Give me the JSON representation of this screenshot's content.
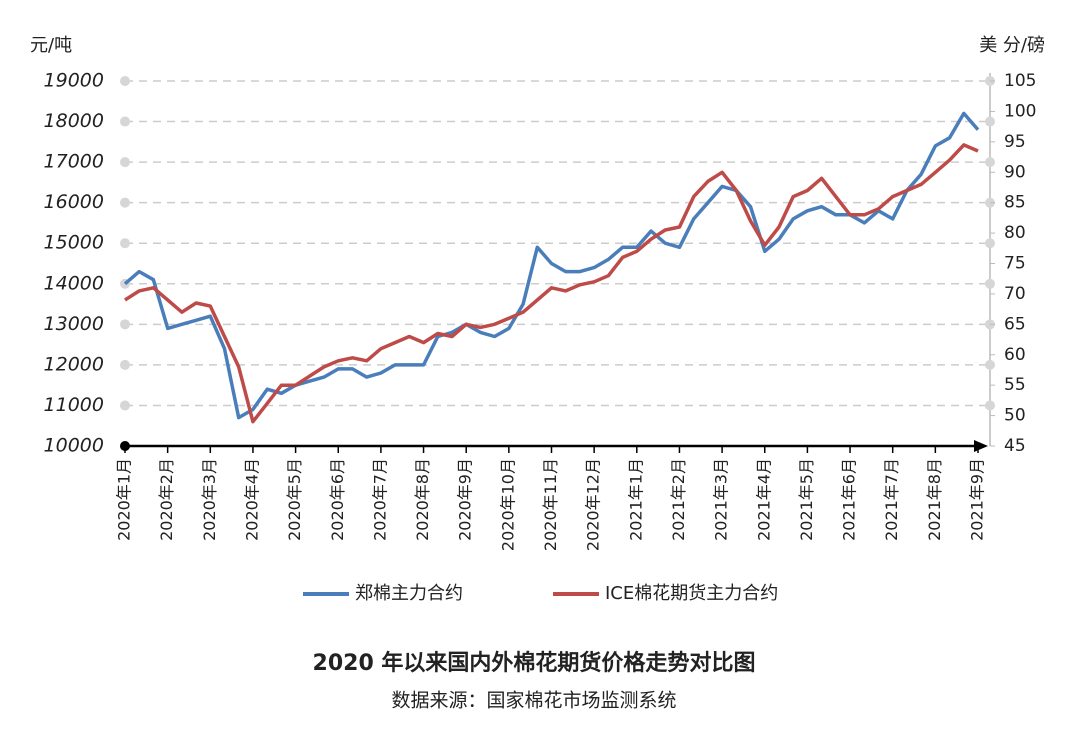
{
  "chart_data": {
    "type": "line",
    "title": "2020 年以来国内外棉花期货价格走势对比图",
    "subtitle": "数据来源：国家棉花市场监测系统",
    "ylabel": "元/吨",
    "y2label": "美 分/磅",
    "categories": [
      "2020年1月",
      null,
      null,
      "2020年2月",
      null,
      null,
      "2020年3月",
      null,
      null,
      "2020年4月",
      null,
      null,
      "2020年5月",
      null,
      null,
      "2020年6月",
      null,
      null,
      "2020年7月",
      null,
      null,
      "2020年8月",
      null,
      null,
      "2020年9月",
      null,
      null,
      "2020年10月",
      null,
      null,
      "2020年11月",
      null,
      null,
      "2020年12月",
      null,
      null,
      "2021年1月",
      null,
      null,
      "2021年2月",
      null,
      null,
      "2021年3月",
      null,
      null,
      "2021年4月",
      null,
      null,
      "2021年5月",
      null,
      null,
      "2021年6月",
      null,
      null,
      "2021年7月",
      null,
      null,
      "2021年8月",
      null,
      null,
      "2021年9月"
    ],
    "series": [
      {
        "name": "郑棉主力合约",
        "color": "#4a7ebb",
        "axis": "y",
        "values": [
          14000,
          14300,
          14100,
          12900,
          13000,
          13100,
          13200,
          12400,
          10700,
          10900,
          11400,
          11300,
          11500,
          11600,
          11700,
          11900,
          11900,
          11700,
          11800,
          12000,
          12000,
          12000,
          12700,
          12800,
          13000,
          12800,
          12700,
          12900,
          13500,
          14900,
          14500,
          14300,
          14300,
          14400,
          14600,
          14900,
          14900,
          15300,
          15000,
          14900,
          15600,
          16000,
          16400,
          16300,
          15900,
          14800,
          15100,
          15600,
          15800,
          15900,
          15700,
          15700,
          15500,
          15800,
          15600,
          16300,
          16700,
          17400,
          17600,
          18200,
          17800
        ]
      },
      {
        "name": "ICE棉花期货主力合约",
        "color": "#be4b48",
        "axis": "y2",
        "values": [
          69,
          70.5,
          71,
          69,
          67,
          68.5,
          68,
          63,
          58,
          49,
          52,
          55,
          55,
          56.5,
          58,
          59,
          59.5,
          59,
          61,
          62,
          63,
          62,
          63.5,
          63,
          65,
          64.5,
          65,
          66,
          67,
          69,
          71,
          70.5,
          71.5,
          72,
          73,
          76,
          77,
          79,
          80.5,
          81,
          86,
          88.5,
          90,
          87,
          82,
          78,
          81,
          86,
          87,
          89,
          86,
          83,
          83,
          84,
          86,
          87,
          88,
          90,
          92,
          94.5,
          93.5
        ]
      }
    ],
    "ylim": [
      10000,
      19000
    ],
    "yticks": [
      10000,
      11000,
      12000,
      13000,
      14000,
      15000,
      16000,
      17000,
      18000,
      19000
    ],
    "y2lim": [
      45,
      105
    ],
    "y2ticks": [
      45,
      50,
      55,
      60,
      65,
      70,
      75,
      80,
      85,
      90,
      95,
      100,
      105
    ],
    "grid": true,
    "legend": "bottom"
  }
}
